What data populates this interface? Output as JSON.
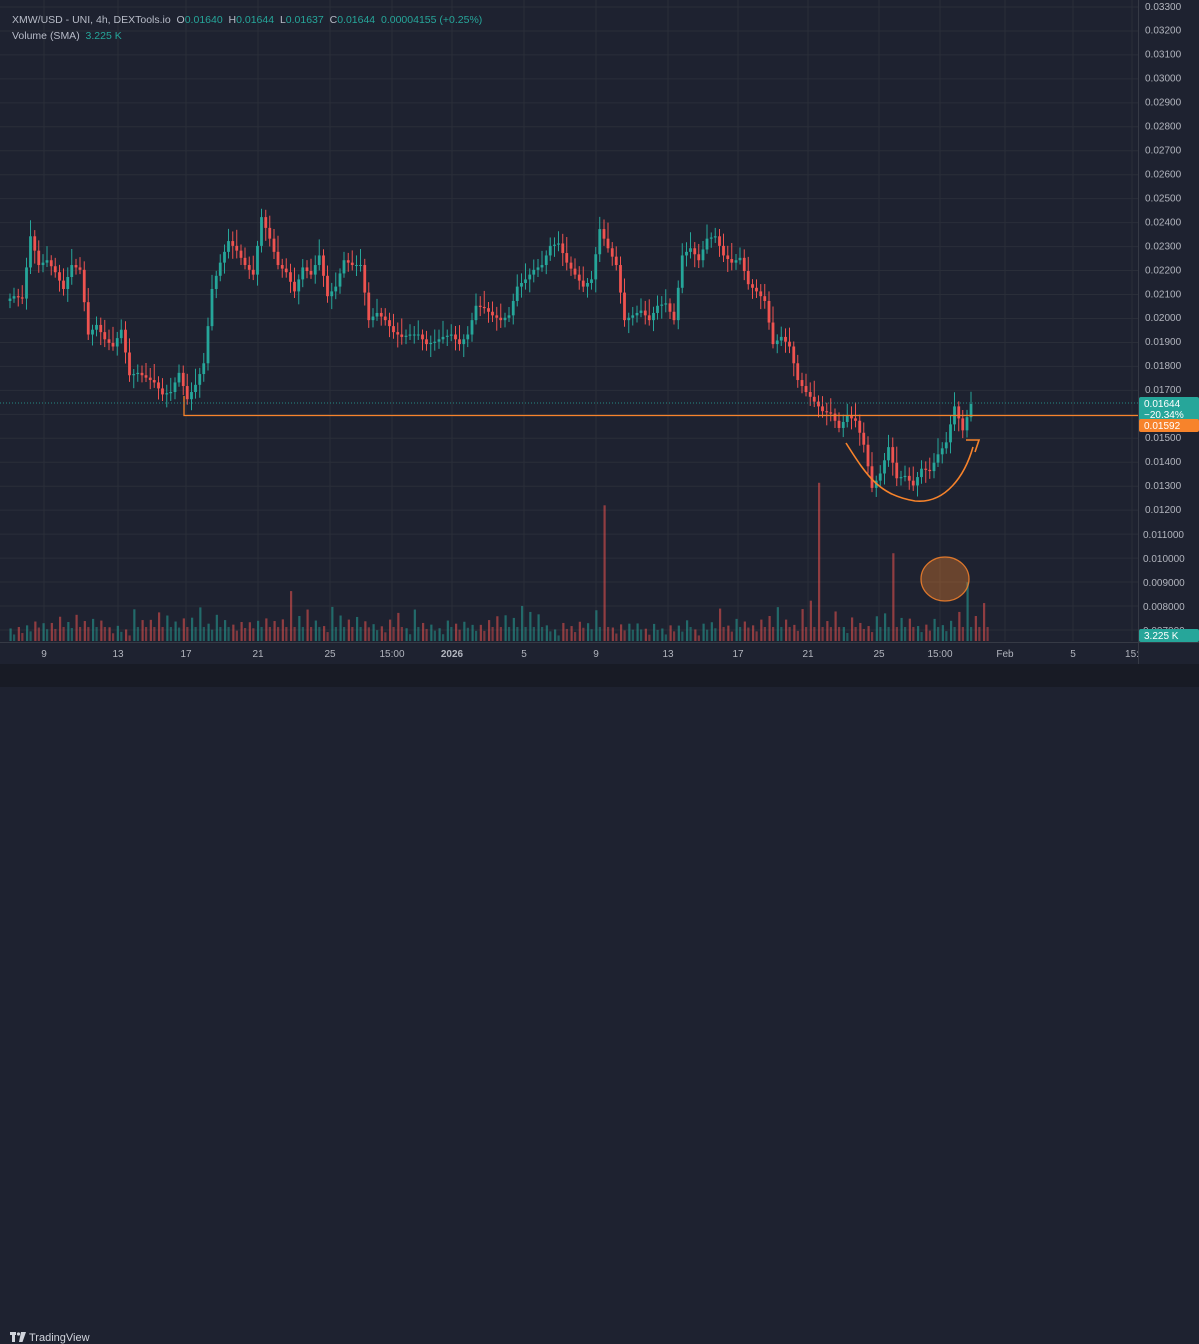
{
  "legend": {
    "symbol": "XMW/USD - UNI, 4h, DEXTools.io",
    "o_label": "O",
    "o": "0.01640",
    "h_label": "H",
    "h": "0.01644",
    "l_label": "L",
    "l": "0.01637",
    "c_label": "C",
    "c": "0.01644",
    "change": "0.00004155 (+0.25%)",
    "volume_label": "Volume (SMA)",
    "volume_value": "3.225 K"
  },
  "footer": {
    "brand_icon": "tradingview-logo-icon",
    "brand": "TradingView"
  },
  "colors": {
    "up": "#26a69a",
    "down": "#ef5350",
    "support": "#f7832b",
    "background": "#1e2230",
    "grid": "#2a2e39",
    "axis_text": "#b2b5be"
  },
  "chart_data": {
    "type": "candlestick",
    "y_axis": {
      "ticks": [
        "0.01200",
        "0.01300",
        "0.01400",
        "0.01500",
        "0.01700",
        "0.01800",
        "0.01900",
        "0.02000",
        "0.02100",
        "0.02200",
        "0.02300",
        "0.02400",
        "0.02500",
        "0.02600",
        "0.02700",
        "0.02800",
        "0.02900",
        "0.03000",
        "0.03100",
        "0.03200",
        "0.03300"
      ],
      "volume_ticks": [
        "0.011000",
        "0.010000",
        "0.009000",
        "0.008000",
        "0.007000"
      ]
    },
    "x_axis": {
      "ticks": [
        "9",
        "13",
        "17",
        "21",
        "25",
        "15:00",
        "2026",
        "5",
        "9",
        "13",
        "17",
        "21",
        "25",
        "15:00",
        "Feb",
        "5",
        "15:"
      ]
    },
    "price_labels": [
      {
        "value": "0.01644",
        "sub": "−20.34%",
        "color": "#26a69a"
      },
      {
        "value": "0.01592",
        "color": "#f7832b"
      }
    ],
    "volume_label": "3.225 K",
    "support_level": 0.01592,
    "last_price": 0.01644,
    "closes": [
      0.0209,
      0.0208,
      0.0234,
      0.0222,
      0.0224,
      0.0219,
      0.0212,
      0.0222,
      0.022,
      0.0193,
      0.0197,
      0.0191,
      0.0188,
      0.0195,
      0.0176,
      0.0177,
      0.0175,
      0.0173,
      0.0168,
      0.0169,
      0.0177,
      0.0166,
      0.0172,
      0.0181,
      0.0212,
      0.0223,
      0.0232,
      0.0228,
      0.0222,
      0.0218,
      0.0242,
      0.0233,
      0.0222,
      0.0219,
      0.0211,
      0.0221,
      0.0218,
      0.0226,
      0.0209,
      0.0213,
      0.0224,
      0.0222,
      0.0222,
      0.0199,
      0.0202,
      0.0199,
      0.0194,
      0.0192,
      0.0193,
      0.0193,
      0.0189,
      0.019,
      0.0192,
      0.0193,
      0.0189,
      0.0193,
      0.0205,
      0.0204,
      0.0201,
      0.0199,
      0.0201,
      0.0213,
      0.0216,
      0.022,
      0.0222,
      0.023,
      0.0231,
      0.0223,
      0.0218,
      0.0213,
      0.0216,
      0.0237,
      0.0229,
      0.0222,
      0.0199,
      0.0201,
      0.0203,
      0.0199,
      0.0205,
      0.0206,
      0.0199,
      0.0226,
      0.0229,
      0.0224,
      0.0233,
      0.0234,
      0.0226,
      0.0223,
      0.0225,
      0.0214,
      0.0211,
      0.0207,
      0.0189,
      0.0192,
      0.0188,
      0.0174,
      0.0169,
      0.0165,
      0.0161,
      0.016,
      0.0154,
      0.0159,
      0.0157,
      0.0147,
      0.0129,
      0.0135,
      0.0146,
      0.0133,
      0.0134,
      0.013,
      0.0137,
      0.0136,
      0.0143,
      0.0148,
      0.0163,
      0.0153,
      0.0164
    ],
    "volumes": [
      0.00708,
      0.00714,
      0.00721,
      0.00737,
      0.0073,
      0.00731,
      0.00757,
      0.00735,
      0.00765,
      0.00739,
      0.00748,
      0.00741,
      0.00713,
      0.00719,
      0.00704,
      0.00788,
      0.00743,
      0.00744,
      0.00775,
      0.00762,
      0.00737,
      0.0075,
      0.00753,
      0.00796,
      0.00728,
      0.00765,
      0.00743,
      0.00724,
      0.00735,
      0.00734,
      0.0074,
      0.0075,
      0.00739,
      0.00746,
      0.00864,
      0.0076,
      0.00787,
      0.00741,
      0.00718,
      0.00798,
      0.00762,
      0.00745,
      0.00756,
      0.00738,
      0.00726,
      0.00717,
      0.00745,
      0.00773,
      0.00709,
      0.00787,
      0.00731,
      0.00724,
      0.00709,
      0.00741,
      0.00728,
      0.00736,
      0.00723,
      0.00723,
      0.00743,
      0.00759,
      0.00763,
      0.00752,
      0.00802,
      0.00777,
      0.00767,
      0.00721,
      0.00704,
      0.00731,
      0.00718,
      0.00736,
      0.0073,
      0.00784,
      0.01222,
      0.00712,
      0.00725,
      0.00728,
      0.00729,
      0.00707,
      0.00727,
      0.00708,
      0.00721,
      0.0072,
      0.00742,
      0.00704,
      0.00728,
      0.00734,
      0.00791,
      0.0072,
      0.00748,
      0.00737,
      0.00721,
      0.00745,
      0.0076,
      0.00797,
      0.00745,
      0.00723,
      0.00789,
      0.00824,
      0.01316,
      0.00739,
      0.00779,
      0.00714,
      0.00754,
      0.00731,
      0.00718,
      0.00759,
      0.00771,
      0.01022,
      0.00752,
      0.00749,
      0.00718,
      0.00724,
      0.00748,
      0.00722,
      0.0074,
      0.00777,
      0.00901,
      0.0076,
      0.00814
    ]
  }
}
